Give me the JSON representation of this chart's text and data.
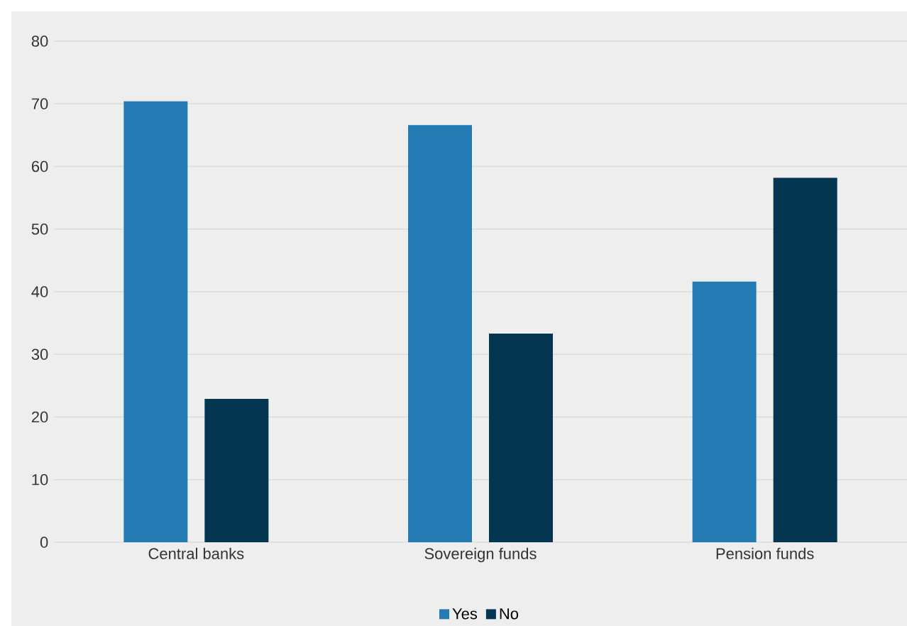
{
  "chart_data": {
    "type": "bar",
    "categories": [
      "Central banks",
      "Sovereign funds",
      "Pension funds"
    ],
    "series": [
      {
        "name": "Yes",
        "color": "#247bb3",
        "values": [
          70.4,
          66.6,
          41.6
        ]
      },
      {
        "name": "No",
        "color": "#043551",
        "values": [
          22.9,
          33.3,
          58.2
        ]
      }
    ],
    "ylim": [
      0,
      80
    ],
    "yticks": [
      0,
      10,
      20,
      30,
      40,
      50,
      60,
      70,
      80
    ],
    "grid": "y",
    "legend": "bottom"
  }
}
